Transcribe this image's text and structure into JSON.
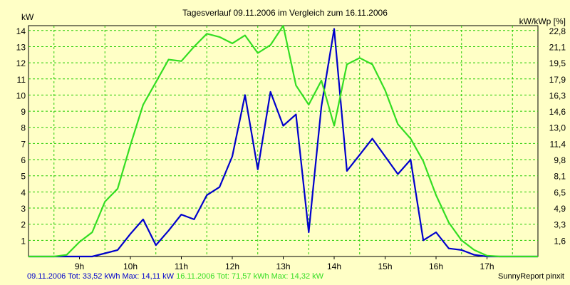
{
  "chart_data": {
    "type": "line",
    "title": "Tagesverlauf 09.11.2006 im Vergleich zum 16.11.2006",
    "ylabel_left": "kW",
    "ylabel_right": "kW/kWp [%]",
    "x_ticks": [
      "9h",
      "10h",
      "11h",
      "12h",
      "13h",
      "14h",
      "15h",
      "16h",
      "17h"
    ],
    "y_ticks_left": [
      "1",
      "2",
      "3",
      "4",
      "5",
      "6",
      "7",
      "8",
      "9",
      "10",
      "11",
      "12",
      "13",
      "14"
    ],
    "y_ticks_right": [
      "1,6",
      "3,3",
      "4,9",
      "6,5",
      "8,1",
      "9,8",
      "11,4",
      "13,0",
      "14,6",
      "16,3",
      "17,9",
      "19,5",
      "21,1",
      "22,8"
    ],
    "xlim": [
      8.0,
      18.0
    ],
    "ylim": [
      0,
      14.3
    ],
    "grid": true,
    "series": [
      {
        "name": "09.11.2006",
        "color": "#0000cc",
        "x": [
          8.0,
          8.5,
          9.0,
          9.25,
          9.5,
          9.75,
          10.0,
          10.25,
          10.5,
          10.75,
          11.0,
          11.25,
          11.5,
          11.75,
          12.0,
          12.25,
          12.5,
          12.75,
          13.0,
          13.25,
          13.5,
          13.75,
          14.0,
          14.25,
          14.5,
          14.75,
          15.0,
          15.25,
          15.5,
          15.75,
          16.0,
          16.25,
          16.5,
          16.75,
          17.0,
          17.25,
          17.5,
          18.0
        ],
        "y": [
          0,
          0,
          0,
          0,
          0.2,
          0.4,
          1.4,
          2.3,
          0.7,
          1.6,
          2.6,
          2.3,
          3.8,
          4.3,
          6.2,
          10.0,
          5.4,
          10.2,
          8.1,
          8.8,
          1.5,
          9.3,
          14.1,
          5.3,
          6.3,
          7.3,
          6.2,
          5.1,
          6.0,
          1.0,
          1.5,
          0.5,
          0.4,
          0.1,
          0,
          0,
          0,
          0
        ]
      },
      {
        "name": "16.11.2006",
        "color": "#33dd22",
        "x": [
          8.0,
          8.5,
          8.75,
          9.0,
          9.25,
          9.5,
          9.75,
          10.0,
          10.25,
          10.5,
          10.75,
          11.0,
          11.25,
          11.5,
          11.75,
          12.0,
          12.25,
          12.5,
          12.75,
          13.0,
          13.25,
          13.5,
          13.75,
          14.0,
          14.25,
          14.5,
          14.75,
          15.0,
          15.25,
          15.5,
          15.75,
          16.0,
          16.25,
          16.5,
          16.75,
          17.0,
          17.25,
          17.5,
          18.0
        ],
        "y": [
          0,
          0,
          0.1,
          0.9,
          1.5,
          3.4,
          4.2,
          6.9,
          9.4,
          10.8,
          12.2,
          12.1,
          13.0,
          13.8,
          13.6,
          13.2,
          13.7,
          12.6,
          13.1,
          14.3,
          10.6,
          9.4,
          10.9,
          8.1,
          11.9,
          12.3,
          11.9,
          10.3,
          8.2,
          7.3,
          5.9,
          3.8,
          2.1,
          1.0,
          0.4,
          0.05,
          0,
          0,
          0
        ]
      }
    ]
  },
  "footer": {
    "left_blue": "09.11.2006 Tot: 33,52 kWh Max: 14,11 kW",
    "left_green": " 16.11.2006 Tot: 71,57 kWh Max: 14,32 kW",
    "right": "SunnyReport pinxit"
  }
}
